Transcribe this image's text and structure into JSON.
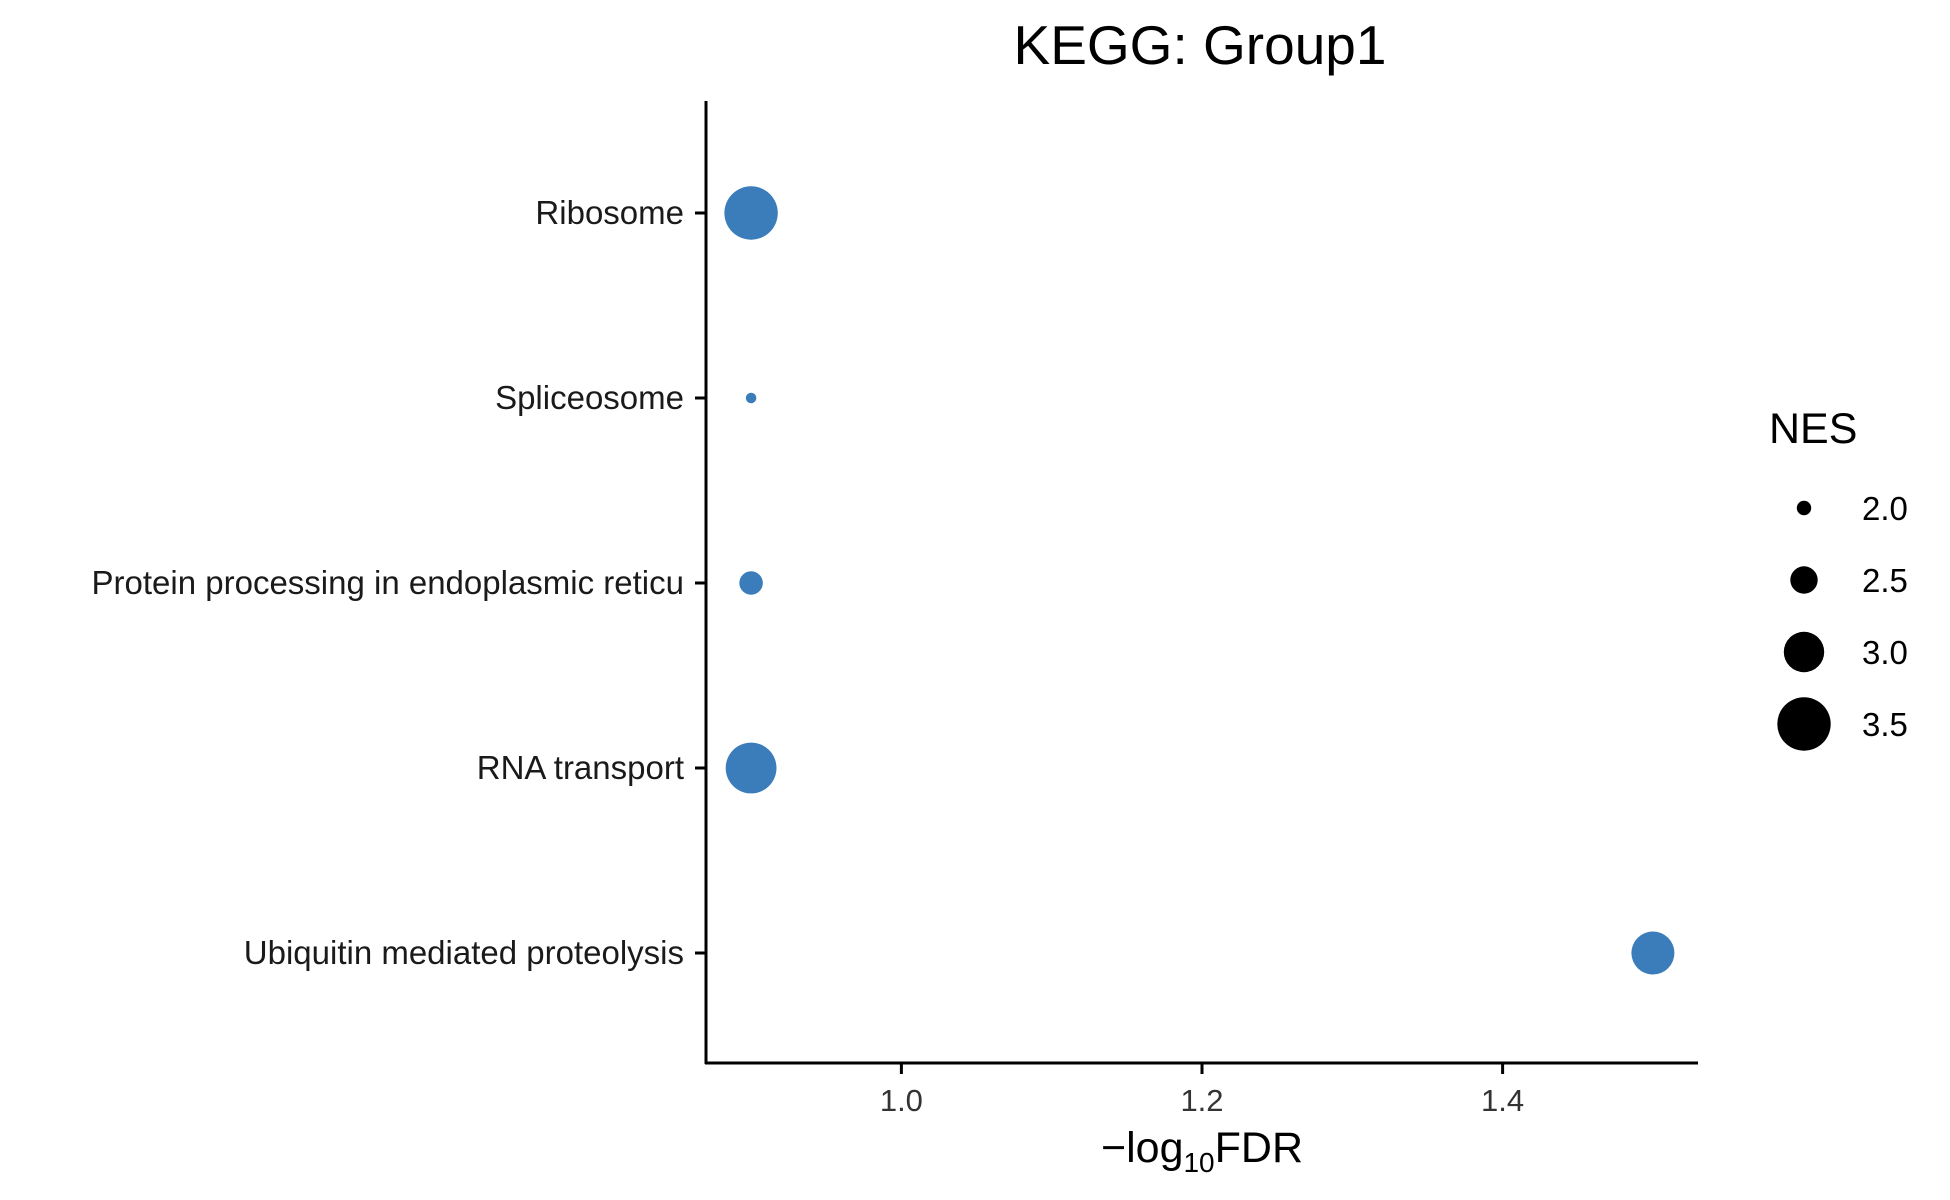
{
  "chart_data": {
    "type": "scatter",
    "title": "KEGG: Group1",
    "xlabel": {
      "prefix": "−log",
      "subscript": "10",
      "suffix": "FDR"
    },
    "ylabel": "",
    "x_ticks": [
      "1.0",
      "1.2",
      "1.4"
    ],
    "x_tick_values": [
      1.0,
      1.2,
      1.4
    ],
    "xlim": [
      0.87,
      1.53
    ],
    "categories": [
      "Ribosome",
      "Spliceosome",
      "Protein processing in endoplasmic reticu",
      "RNA transport",
      "Ubiquitin mediated proteolysis"
    ],
    "points": [
      {
        "category": "Ribosome",
        "x": 0.9,
        "nes": 3.5
      },
      {
        "category": "Spliceosome",
        "x": 0.9,
        "nes": 1.85
      },
      {
        "category": "Protein processing in endoplasmic reticu",
        "x": 0.9,
        "nes": 2.35
      },
      {
        "category": "RNA transport",
        "x": 0.9,
        "nes": 3.4
      },
      {
        "category": "Ubiquitin mediated proteolysis",
        "x": 1.5,
        "nes": 3.1
      }
    ],
    "point_color": "#3a7dba",
    "legend": {
      "title": "NES",
      "placement": "right",
      "labels": [
        "2.0",
        "2.5",
        "3.0",
        "3.5"
      ],
      "values": [
        2.0,
        2.5,
        3.0,
        3.5
      ],
      "color": "#000000"
    },
    "grid": false
  }
}
